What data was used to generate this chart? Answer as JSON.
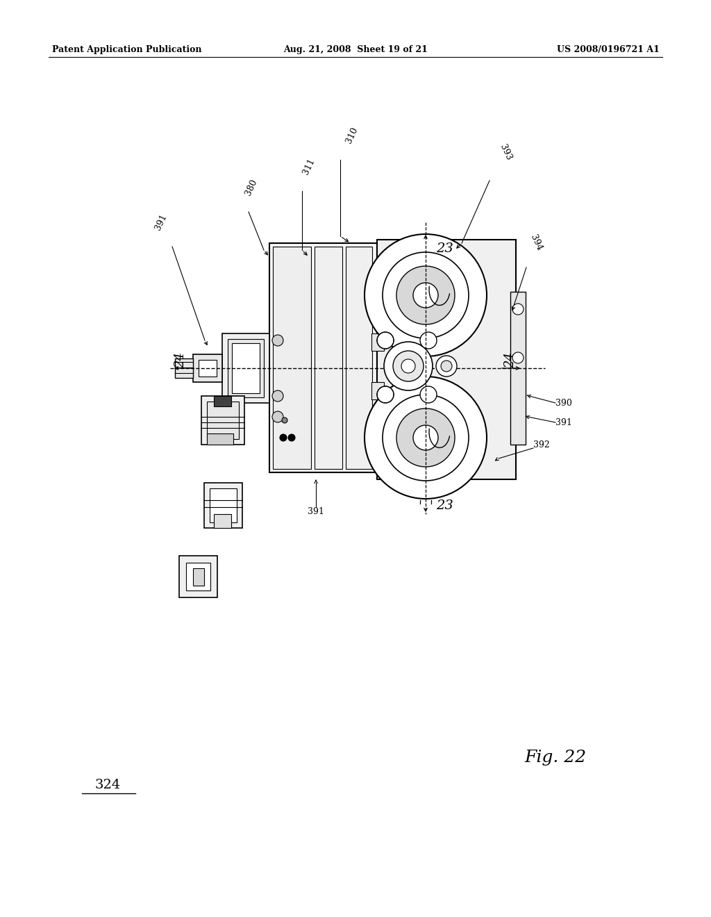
{
  "bg_color": "#ffffff",
  "header_left": "Patent Application Publication",
  "header_center": "Aug. 21, 2008  Sheet 19 of 21",
  "header_right": "US 2008/0196721 A1",
  "fig_label": "Fig. 22",
  "part_number_bottom_left": "324"
}
